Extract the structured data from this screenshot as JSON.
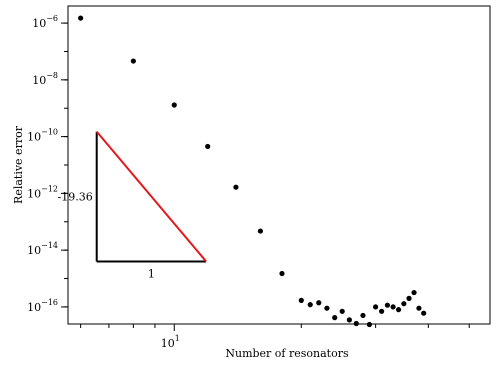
{
  "chart_data": {
    "type": "scatter",
    "xlabel": "Number of resonators",
    "ylabel": "Relative error",
    "x_scale": "log",
    "y_scale": "log",
    "xlim": [
      5.6,
      56
    ],
    "ylim": [
      2.5e-17,
      4e-06
    ],
    "x_tick_labels": [
      {
        "value": 10,
        "base": "10",
        "exp": "1"
      }
    ],
    "y_tick_labels": [
      {
        "value": 1e-16,
        "base": "10",
        "exp": "−16"
      },
      {
        "value": 1e-14,
        "base": "10",
        "exp": "−14"
      },
      {
        "value": 1e-12,
        "base": "10",
        "exp": "−12"
      },
      {
        "value": 1e-10,
        "base": "10",
        "exp": "−10"
      },
      {
        "value": 1e-08,
        "base": "10",
        "exp": "−8"
      },
      {
        "value": 1e-06,
        "base": "10",
        "exp": "−6"
      }
    ],
    "series": [
      {
        "color": "#000000",
        "points": [
          {
            "x": 6,
            "y": 1.5e-06
          },
          {
            "x": 8,
            "y": 4.6e-08
          },
          {
            "x": 10,
            "y": 1.3e-09
          },
          {
            "x": 12,
            "y": 4.5e-11
          },
          {
            "x": 14,
            "y": 1.65e-12
          },
          {
            "x": 16,
            "y": 4.7e-14
          },
          {
            "x": 18,
            "y": 1.5e-15
          },
          {
            "x": 20,
            "y": 1.7e-16
          },
          {
            "x": 21,
            "y": 1.2e-16
          },
          {
            "x": 22,
            "y": 1.4e-16
          },
          {
            "x": 23,
            "y": 9e-17
          },
          {
            "x": 24,
            "y": 4.2e-17
          },
          {
            "x": 25,
            "y": 7e-17
          },
          {
            "x": 26,
            "y": 3.5e-17
          },
          {
            "x": 27,
            "y": 2.6e-17
          },
          {
            "x": 28,
            "y": 5e-17
          },
          {
            "x": 29,
            "y": 2.4e-17
          },
          {
            "x": 30,
            "y": 1e-16
          },
          {
            "x": 31,
            "y": 7e-17
          },
          {
            "x": 32,
            "y": 1.15e-16
          },
          {
            "x": 33,
            "y": 1e-16
          },
          {
            "x": 34,
            "y": 8e-17
          },
          {
            "x": 35,
            "y": 1.3e-16
          },
          {
            "x": 36,
            "y": 2e-16
          },
          {
            "x": 37,
            "y": 3.2e-16
          },
          {
            "x": 38,
            "y": 9e-17
          },
          {
            "x": 39,
            "y": 6e-17
          }
        ]
      }
    ],
    "slope_triangle": {
      "x_start": 6.55,
      "x_end": 11.9,
      "y_top": 1.5e-10,
      "y_bottom": 4e-15,
      "slope_label": "-19.36",
      "run_label": "1",
      "hypotenuse_color": "#e31a1c",
      "legs_color": "#000000"
    },
    "grid": false
  }
}
